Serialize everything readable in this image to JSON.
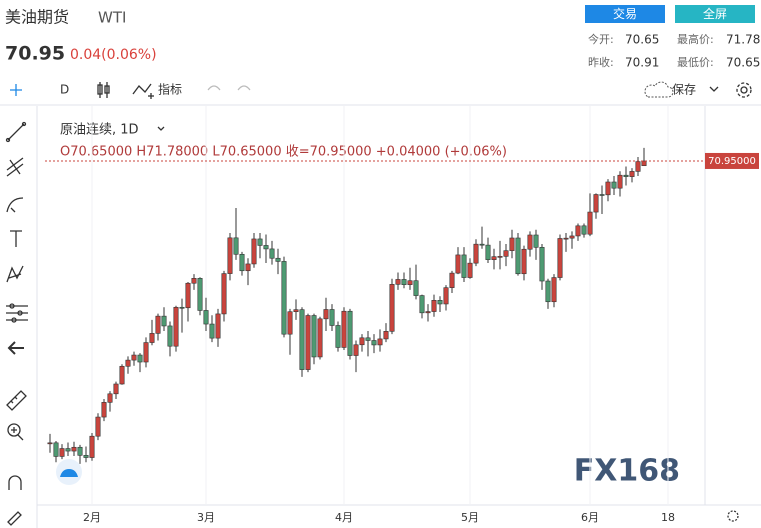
{
  "header": {
    "name": "美油期货",
    "code": "WTI",
    "price": "70.95",
    "change": "0.04(0.06%)",
    "buttons": [
      "交易",
      "全屏"
    ],
    "stats": [
      {
        "label": "今开:",
        "value": "70.65"
      },
      {
        "label": "最高价:",
        "value": "71.78"
      },
      {
        "label": "昨收:",
        "value": "70.91"
      },
      {
        "label": "最低价:",
        "value": "70.65"
      }
    ]
  },
  "toolbar": {
    "interval": "D",
    "indicators": "指标",
    "save": "保存"
  },
  "chart_data": {
    "type": "candlestick",
    "title": "原油连续, 1D",
    "ohlc_text": "O70.65000 H71.78000 L70.65000 收=70.95000 +0.04000 (+0.06%)",
    "watermark": "FX168",
    "up_color": "#c9443d",
    "down_color": "#4e9a72",
    "ylim": [
      49.2,
      73.54
    ],
    "price_line": {
      "value": 70.95,
      "label": "70.95000"
    },
    "categories": [
      null,
      null,
      null,
      null,
      null,
      null,
      null,
      "2月",
      null,
      null,
      null,
      null,
      null,
      null,
      null,
      null,
      null,
      null,
      null,
      null,
      null,
      null,
      null,
      null,
      null,
      null,
      "3月",
      null,
      null,
      null,
      null,
      null,
      null,
      null,
      null,
      null,
      null,
      null,
      null,
      null,
      null,
      null,
      null,
      null,
      null,
      null,
      null,
      null,
      null,
      "4月",
      null,
      null,
      null,
      null,
      null,
      null,
      null,
      null,
      null,
      null,
      null,
      null,
      null,
      null,
      null,
      null,
      null,
      null,
      null,
      null,
      "5月",
      null,
      null,
      null,
      null,
      null,
      null,
      null,
      null,
      null,
      null,
      null,
      null,
      null,
      null,
      null,
      null,
      null,
      null,
      null,
      "6月",
      null,
      null,
      null,
      null,
      null,
      null,
      null,
      null,
      null,
      null,
      null,
      null,
      "18"
    ],
    "ohlc": [
      [
        53.1,
        53.7,
        52.5,
        53.13
      ],
      [
        53.13,
        53.25,
        51.9,
        52.27
      ],
      [
        52.27,
        53.05,
        52.1,
        52.77
      ],
      [
        52.77,
        53.15,
        52.3,
        52.61
      ],
      [
        52.61,
        53.2,
        52.3,
        52.85
      ],
      [
        52.85,
        53.0,
        51.8,
        52.34
      ],
      [
        52.34,
        52.9,
        51.9,
        52.2
      ],
      [
        52.2,
        53.75,
        52.0,
        53.55
      ],
      [
        53.55,
        55.0,
        53.3,
        54.76
      ],
      [
        54.76,
        55.9,
        54.5,
        55.69
      ],
      [
        55.69,
        56.4,
        55.1,
        56.23
      ],
      [
        56.23,
        57.0,
        55.9,
        56.85
      ],
      [
        56.85,
        58.1,
        56.8,
        57.97
      ],
      [
        57.97,
        58.6,
        57.5,
        58.36
      ],
      [
        58.36,
        58.9,
        58.0,
        58.68
      ],
      [
        58.68,
        58.8,
        57.6,
        58.24
      ],
      [
        58.24,
        59.8,
        57.9,
        59.47
      ],
      [
        59.47,
        60.9,
        59.3,
        60.05
      ],
      [
        60.05,
        61.3,
        59.6,
        61.14
      ],
      [
        61.14,
        61.7,
        60.2,
        60.52
      ],
      [
        60.52,
        60.8,
        58.6,
        59.24
      ],
      [
        59.24,
        61.8,
        58.9,
        61.7
      ],
      [
        61.7,
        62.25,
        60.1,
        61.67
      ],
      [
        61.67,
        63.3,
        60.8,
        63.22
      ],
      [
        63.22,
        63.8,
        62.8,
        63.53
      ],
      [
        63.53,
        63.6,
        61.2,
        61.5
      ],
      [
        61.5,
        62.3,
        60.2,
        60.64
      ],
      [
        60.64,
        61.2,
        59.5,
        59.75
      ],
      [
        59.75,
        61.6,
        59.2,
        61.28
      ],
      [
        61.28,
        64.0,
        60.8,
        63.83
      ],
      [
        63.83,
        66.4,
        63.4,
        66.09
      ],
      [
        66.09,
        67.98,
        64.7,
        65.05
      ],
      [
        65.05,
        65.2,
        63.7,
        64.01
      ],
      [
        64.01,
        64.8,
        63.1,
        64.44
      ],
      [
        64.44,
        66.4,
        64.2,
        66.02
      ],
      [
        66.02,
        66.4,
        64.8,
        65.61
      ],
      [
        65.61,
        66.3,
        64.5,
        65.39
      ],
      [
        65.39,
        65.9,
        64.4,
        64.8
      ],
      [
        64.8,
        65.4,
        63.8,
        64.6
      ],
      [
        64.6,
        64.9,
        59.8,
        60.0
      ],
      [
        60.0,
        61.6,
        58.7,
        61.42
      ],
      [
        61.42,
        62.2,
        60.9,
        61.55
      ],
      [
        61.55,
        61.7,
        57.3,
        57.76
      ],
      [
        57.76,
        61.3,
        57.6,
        61.18
      ],
      [
        61.18,
        61.3,
        58.1,
        58.56
      ],
      [
        58.56,
        61.1,
        58.4,
        60.97
      ],
      [
        60.97,
        62.3,
        60.2,
        61.56
      ],
      [
        61.56,
        61.9,
        60.2,
        60.55
      ],
      [
        60.55,
        60.8,
        58.9,
        59.16
      ],
      [
        59.16,
        61.7,
        59.0,
        61.45
      ],
      [
        61.45,
        61.6,
        58.4,
        58.65
      ],
      [
        58.65,
        59.6,
        57.6,
        59.33
      ],
      [
        59.33,
        60.0,
        58.9,
        59.77
      ],
      [
        59.77,
        60.2,
        58.6,
        59.6
      ],
      [
        59.6,
        60.0,
        58.8,
        59.32
      ],
      [
        59.32,
        60.3,
        58.9,
        59.7
      ],
      [
        59.7,
        60.7,
        59.5,
        60.18
      ],
      [
        60.18,
        63.5,
        60.0,
        63.15
      ],
      [
        63.15,
        63.9,
        62.8,
        63.46
      ],
      [
        63.46,
        63.9,
        62.9,
        63.13
      ],
      [
        63.13,
        64.2,
        62.8,
        63.38
      ],
      [
        63.38,
        64.4,
        62.2,
        62.44
      ],
      [
        62.44,
        62.5,
        61.0,
        61.35
      ],
      [
        61.35,
        61.9,
        60.8,
        61.43
      ],
      [
        61.43,
        62.5,
        61.1,
        62.14
      ],
      [
        62.14,
        62.4,
        61.4,
        61.91
      ],
      [
        61.91,
        63.1,
        61.5,
        62.94
      ],
      [
        62.94,
        64.0,
        62.6,
        63.86
      ],
      [
        63.86,
        65.5,
        63.8,
        65.01
      ],
      [
        65.01,
        65.5,
        63.3,
        63.58
      ],
      [
        63.58,
        64.8,
        63.5,
        64.49
      ],
      [
        64.49,
        66.0,
        64.3,
        65.69
      ],
      [
        65.69,
        66.8,
        65.4,
        65.63
      ],
      [
        65.63,
        66.1,
        64.5,
        64.71
      ],
      [
        64.71,
        65.4,
        64.1,
        64.9
      ],
      [
        64.9,
        65.9,
        64.1,
        64.92
      ],
      [
        64.92,
        65.7,
        64.3,
        65.28
      ],
      [
        65.28,
        66.6,
        64.8,
        66.08
      ],
      [
        66.08,
        66.4,
        63.7,
        63.82
      ],
      [
        63.82,
        65.6,
        63.4,
        65.37
      ],
      [
        65.37,
        66.5,
        64.9,
        66.27
      ],
      [
        66.27,
        66.6,
        64.7,
        65.49
      ],
      [
        65.49,
        65.7,
        62.8,
        63.36
      ],
      [
        63.36,
        63.5,
        61.6,
        62.05
      ],
      [
        62.05,
        63.8,
        61.7,
        63.58
      ],
      [
        63.58,
        66.3,
        63.4,
        66.05
      ],
      [
        66.05,
        66.4,
        65.2,
        66.07
      ],
      [
        66.07,
        66.5,
        65.4,
        66.21
      ],
      [
        66.21,
        67.0,
        65.9,
        66.85
      ],
      [
        66.85,
        67.0,
        66.1,
        66.32
      ],
      [
        66.32,
        68.9,
        66.2,
        67.72
      ],
      [
        67.72,
        68.9,
        67.3,
        68.83
      ],
      [
        68.83,
        69.4,
        67.6,
        68.81
      ],
      [
        68.81,
        69.8,
        68.4,
        69.62
      ],
      [
        69.62,
        70.0,
        68.8,
        69.23
      ],
      [
        69.23,
        70.3,
        68.7,
        70.05
      ],
      [
        70.05,
        70.6,
        69.4,
        69.96
      ],
      [
        69.96,
        70.5,
        69.6,
        70.29
      ],
      [
        70.29,
        71.2,
        70.0,
        70.91
      ],
      [
        70.65,
        71.78,
        70.65,
        70.95
      ],
      null,
      null,
      null,
      null
    ]
  }
}
